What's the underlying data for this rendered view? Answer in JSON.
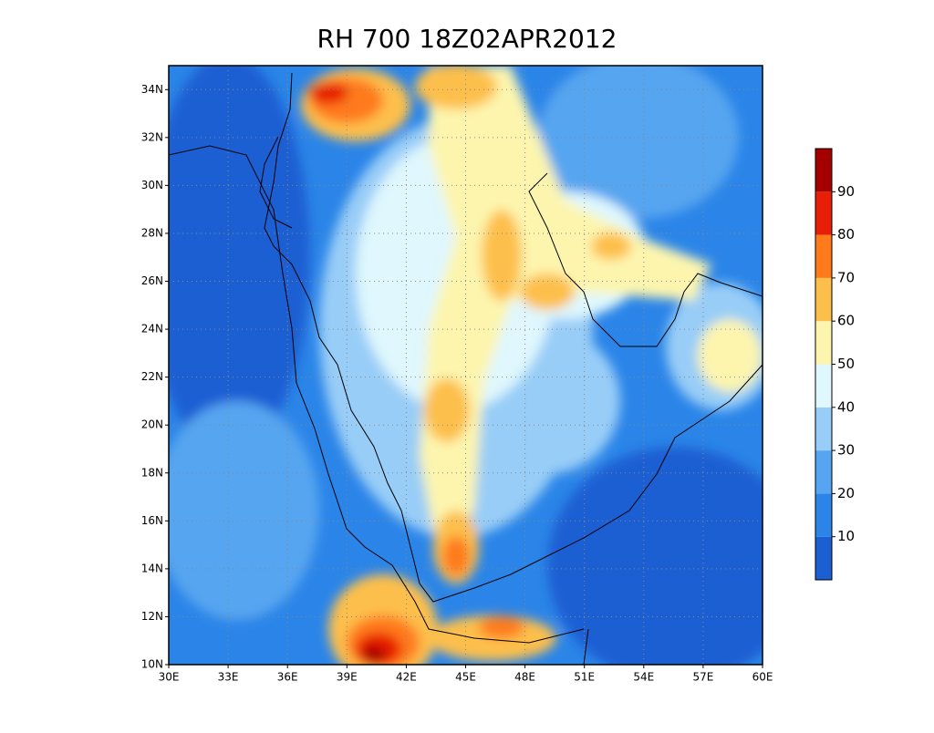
{
  "title": "RH 700 18Z02APR2012",
  "map": {
    "lonlim": [
      30,
      60
    ],
    "latlim": [
      10,
      35
    ],
    "lon_ticks": [
      {
        "value": 30,
        "label": "30E"
      },
      {
        "value": 33,
        "label": "33E"
      },
      {
        "value": 36,
        "label": "36E"
      },
      {
        "value": 39,
        "label": "39E"
      },
      {
        "value": 42,
        "label": "42E"
      },
      {
        "value": 45,
        "label": "45E"
      },
      {
        "value": 48,
        "label": "48E"
      },
      {
        "value": 51,
        "label": "51E"
      },
      {
        "value": 54,
        "label": "54E"
      },
      {
        "value": 57,
        "label": "57E"
      },
      {
        "value": 60,
        "label": "60E"
      }
    ],
    "lat_ticks": [
      {
        "value": 10,
        "label": "10N"
      },
      {
        "value": 12,
        "label": "12N"
      },
      {
        "value": 14,
        "label": "14N"
      },
      {
        "value": 16,
        "label": "16N"
      },
      {
        "value": 18,
        "label": "18N"
      },
      {
        "value": 20,
        "label": "20N"
      },
      {
        "value": 22,
        "label": "22N"
      },
      {
        "value": 24,
        "label": "24N"
      },
      {
        "value": 26,
        "label": "26N"
      },
      {
        "value": 28,
        "label": "28N"
      },
      {
        "value": 30,
        "label": "30N"
      },
      {
        "value": 32,
        "label": "32N"
      },
      {
        "value": 34,
        "label": "34N"
      }
    ],
    "grid": true
  },
  "colorbar": {
    "range": [
      0,
      100
    ],
    "ticks": [
      10,
      20,
      30,
      40,
      50,
      60,
      70,
      80,
      90
    ],
    "colors": [
      "#1c5fd3",
      "#2b85e8",
      "#56a5f0",
      "#98cdf7",
      "#dff7fd",
      "#fdf5ae",
      "#fdbf4b",
      "#ff7a1a",
      "#e81e06",
      "#a50000"
    ]
  }
}
